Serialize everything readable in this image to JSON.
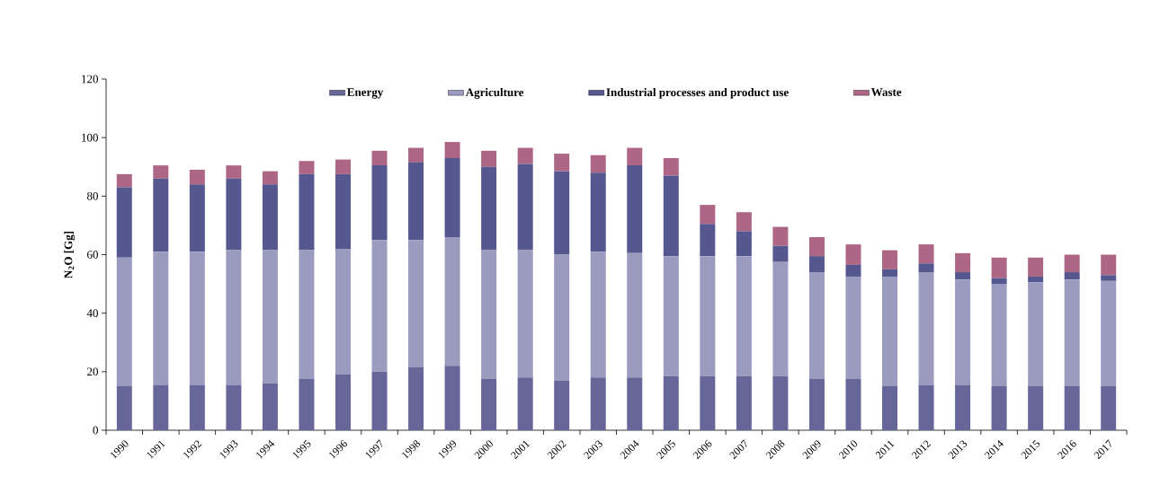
{
  "chart_data": {
    "type": "bar",
    "stacked": true,
    "ylabel": "**N$_{2}$O [Gg]**",
    "legend": "top",
    "categories": [
      "1990",
      "1991",
      "1992",
      "1993",
      "1994",
      "1995",
      "1996",
      "1997",
      "1998",
      "1999",
      "2000",
      "2001",
      "2002",
      "2003",
      "2004",
      "2005",
      "2006",
      "2007",
      "2008",
      "2009",
      "2010",
      "2011",
      "2012",
      "2013",
      "2014",
      "2015",
      "2016",
      "2017"
    ],
    "ylim": [
      0,
      120
    ],
    "yticks": [
      0,
      20,
      40,
      60,
      80,
      100,
      120
    ],
    "series": [
      {
        "name": "Energy",
        "color": "#666699",
        "values": [
          15,
          15.5,
          15.5,
          15.5,
          16,
          17.5,
          19,
          20,
          21.5,
          22,
          17.5,
          18,
          17,
          18,
          18,
          18.5,
          18.5,
          18.5,
          18.5,
          17.5,
          17.5,
          15,
          15.5,
          15.5,
          15,
          15,
          15,
          15
        ]
      },
      {
        "name": "Agriculture",
        "color": "#9b9bc0",
        "values": [
          44,
          45.5,
          45.5,
          46,
          45.5,
          44,
          43,
          45,
          43.5,
          44,
          44,
          43.5,
          43,
          43,
          42.5,
          41,
          41,
          41,
          39,
          36.5,
          35,
          37.5,
          38.5,
          36,
          35,
          35.5,
          36.5,
          36
        ]
      },
      {
        "name": "Industrial processes and product use",
        "color": "#55578f",
        "values": [
          24,
          25,
          23,
          24.5,
          22.5,
          26,
          25.5,
          25.5,
          26.5,
          27,
          28.5,
          29.5,
          28.5,
          27,
          30,
          27.5,
          11,
          8.5,
          5.5,
          5.5,
          4,
          2.5,
          3,
          2.5,
          2,
          2,
          2.5,
          2
        ]
      },
      {
        "name": "Waste",
        "color": "#ad6685",
        "values": [
          4.5,
          4.5,
          5,
          4.5,
          4.5,
          4.5,
          5,
          5,
          5,
          5.5,
          5.5,
          5.5,
          6,
          6,
          6,
          6,
          6.5,
          6.5,
          6.5,
          6.5,
          7,
          6.5,
          6.5,
          6.5,
          7,
          6.5,
          6,
          7
        ]
      }
    ]
  }
}
